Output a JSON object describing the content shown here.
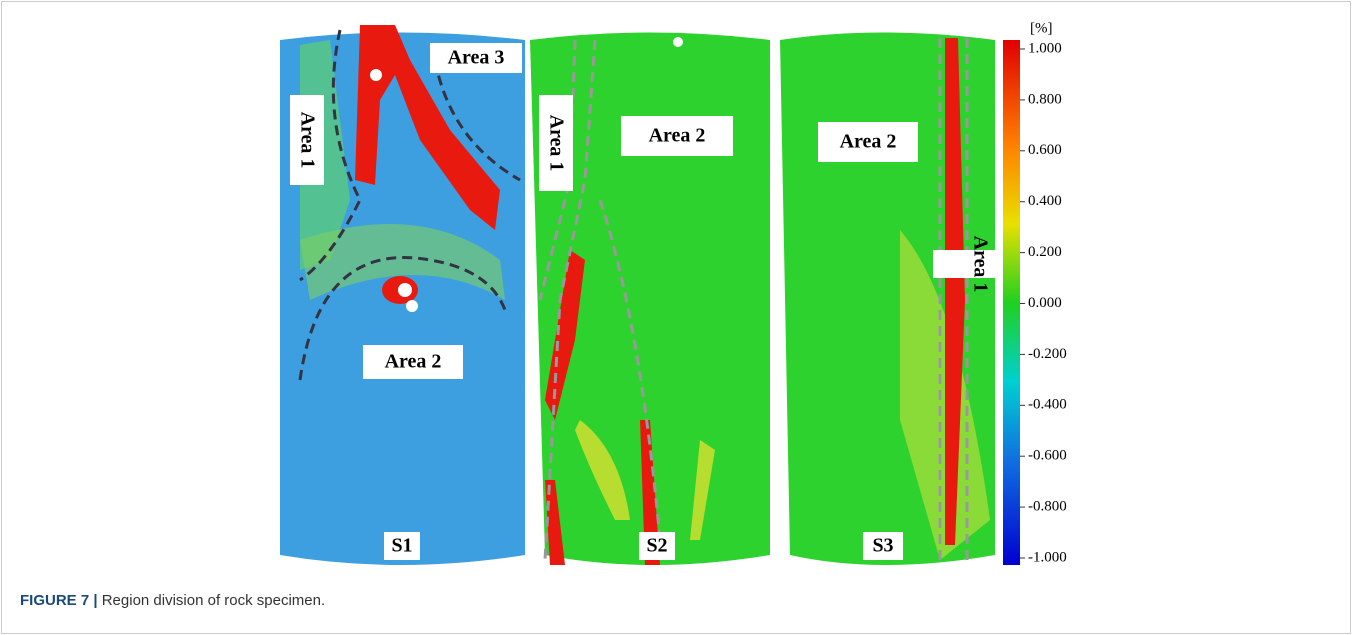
{
  "figure": {
    "specimens": [
      {
        "label": "S1",
        "areas": [
          "Area 1",
          "Area 2",
          "Area 3"
        ]
      },
      {
        "label": "S2",
        "areas": [
          "Area 1",
          "Area 2"
        ]
      },
      {
        "label": "S3",
        "areas": [
          "Area 2",
          "Area 1"
        ]
      }
    ],
    "colorbar": {
      "unit": "[%]",
      "ticks": [
        "1.000",
        "0.800",
        "0.600",
        "0.400",
        "0.200",
        "0.000",
        "-0.200",
        "-0.400",
        "-0.600",
        "-0.800",
        "-1.000"
      ]
    },
    "caption": {
      "label": "FIGURE 7 |",
      "text": "Region division of rock specimen."
    }
  }
}
